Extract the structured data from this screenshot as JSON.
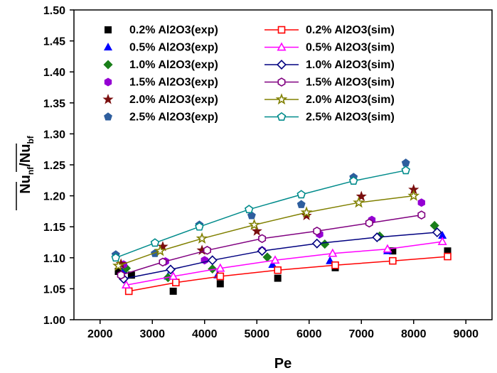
{
  "chart_data": {
    "type": "scatter",
    "xlabel": "Pe",
    "ylabel_main": "Nu",
    "ylabel_sub1": "nf",
    "ylabel_sep": "/",
    "ylabel_main2": "Nu",
    "ylabel_sub2": "bf",
    "xlim": [
      1500,
      9500
    ],
    "ylim": [
      1.0,
      1.5
    ],
    "xticks": [
      2000,
      3000,
      4000,
      5000,
      6000,
      7000,
      8000,
      9000
    ],
    "yticks": [
      1.0,
      1.05,
      1.1,
      1.15,
      1.2,
      1.25,
      1.3,
      1.35,
      1.4,
      1.45,
      1.5
    ],
    "ytick_labels": [
      "1.00",
      "1.05",
      "1.10",
      "1.15",
      "1.20",
      "1.25",
      "1.30",
      "1.35",
      "1.40",
      "1.45",
      "1.50"
    ],
    "legend_position": "top-left",
    "series": [
      {
        "name": "0.2% Al2O3(exp)",
        "kind": "exp",
        "marker": "square",
        "color": "#000000",
        "x": [
          2350,
          2600,
          3400,
          4300,
          5400,
          6500,
          7600,
          8650
        ],
        "y": [
          1.078,
          1.072,
          1.046,
          1.058,
          1.067,
          1.084,
          1.111,
          1.111
        ]
      },
      {
        "name": "0.5% Al2O3(exp)",
        "kind": "exp",
        "marker": "triangle",
        "color": "#0000ff",
        "x": [
          2450,
          3300,
          4250,
          5300,
          6400,
          7500,
          8550
        ],
        "y": [
          1.08,
          1.07,
          1.072,
          1.089,
          1.095,
          1.111,
          1.136
        ]
      },
      {
        "name": "1.0% Al2O3(exp)",
        "kind": "exp",
        "marker": "diamond",
        "color": "#1a7f1a",
        "x": [
          2500,
          3300,
          4150,
          5200,
          6300,
          7350,
          8400
        ],
        "y": [
          1.083,
          1.068,
          1.082,
          1.101,
          1.122,
          1.135,
          1.152
        ]
      },
      {
        "name": "1.5% Al2O3(exp)",
        "kind": "exp",
        "marker": "hexagon",
        "color": "#9400d3",
        "x": [
          2450,
          3250,
          4000,
          5100,
          6200,
          7200,
          8150
        ],
        "y": [
          1.089,
          1.094,
          1.096,
          1.112,
          1.138,
          1.161,
          1.189
        ]
      },
      {
        "name": "2.0% Al2O3(exp)",
        "kind": "exp",
        "marker": "star",
        "color": "#7a0f0f",
        "x": [
          2400,
          3200,
          3950,
          5000,
          5950,
          7000,
          8000
        ],
        "y": [
          1.09,
          1.118,
          1.112,
          1.143,
          1.168,
          1.199,
          1.21
        ]
      },
      {
        "name": "2.5% Al2O3(exp)",
        "kind": "exp",
        "marker": "pentagon",
        "color": "#2e5e9e",
        "x": [
          2300,
          3050,
          3900,
          4900,
          5850,
          6850,
          7850
        ],
        "y": [
          1.105,
          1.107,
          1.153,
          1.168,
          1.186,
          1.23,
          1.253
        ]
      },
      {
        "name": "0.2% Al2O3(sim)",
        "kind": "sim",
        "marker": "square",
        "color": "#ff0000",
        "x": [
          2550,
          3450,
          4300,
          5400,
          6500,
          7600,
          8650
        ],
        "y": [
          1.046,
          1.06,
          1.07,
          1.08,
          1.088,
          1.095,
          1.102
        ]
      },
      {
        "name": "0.5% Al2O3(sim)",
        "kind": "sim",
        "marker": "triangle",
        "color": "#ff00ff",
        "x": [
          2500,
          3400,
          4300,
          5350,
          6450,
          7500,
          8550
        ],
        "y": [
          1.056,
          1.07,
          1.083,
          1.096,
          1.107,
          1.114,
          1.126
        ]
      },
      {
        "name": "1.0% Al2O3(sim)",
        "kind": "sim",
        "marker": "diamond",
        "color": "#000080",
        "x": [
          2450,
          3350,
          4150,
          5100,
          6150,
          7300,
          8450
        ],
        "y": [
          1.066,
          1.081,
          1.096,
          1.111,
          1.123,
          1.133,
          1.141
        ]
      },
      {
        "name": "1.5% Al2O3(sim)",
        "kind": "sim",
        "marker": "hexagon",
        "color": "#800080",
        "x": [
          2400,
          3200,
          4050,
          5100,
          6150,
          7150,
          8150
        ],
        "y": [
          1.072,
          1.093,
          1.112,
          1.131,
          1.143,
          1.156,
          1.169
        ]
      },
      {
        "name": "2.0% Al2O3(sim)",
        "kind": "sim",
        "marker": "star",
        "color": "#808000",
        "x": [
          2350,
          3150,
          3950,
          4950,
          5950,
          6950,
          8000
        ],
        "y": [
          1.087,
          1.111,
          1.131,
          1.153,
          1.173,
          1.189,
          1.2
        ]
      },
      {
        "name": "2.5% Al2O3(sim)",
        "kind": "sim",
        "marker": "pentagon",
        "color": "#008b8b",
        "x": [
          2300,
          3050,
          3900,
          4850,
          5850,
          6850,
          7850
        ],
        "y": [
          1.1,
          1.124,
          1.15,
          1.178,
          1.202,
          1.224,
          1.241
        ]
      }
    ]
  }
}
